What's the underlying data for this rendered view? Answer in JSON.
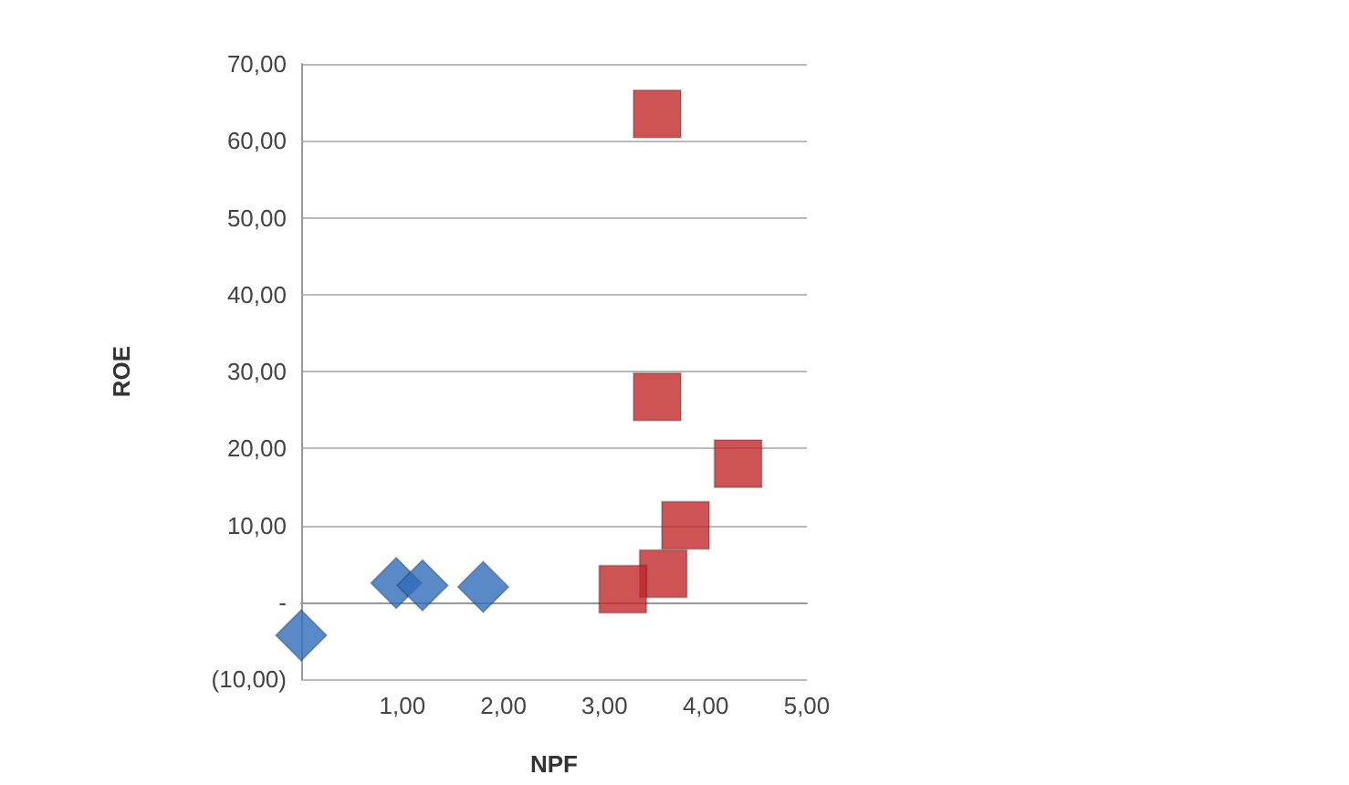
{
  "chart_data": {
    "type": "scatter",
    "xlabel": "NPF",
    "ylabel": "ROE",
    "xlim": [
      0,
      5
    ],
    "xticks": [
      {
        "value": 0,
        "label": null
      },
      {
        "value": 1,
        "label": "1,00"
      },
      {
        "value": 2,
        "label": "2,00"
      },
      {
        "value": 3,
        "label": "3,00"
      },
      {
        "value": 4,
        "label": "4,00"
      },
      {
        "value": 5,
        "label": "5,00"
      }
    ],
    "ylim": [
      -10,
      70
    ],
    "yticks": [
      {
        "value": -10,
        "label": "(10,00)"
      },
      {
        "value": 0,
        "label": "-"
      },
      {
        "value": 10,
        "label": "10,00"
      },
      {
        "value": 20,
        "label": "20,00"
      },
      {
        "value": 30,
        "label": "30,00"
      },
      {
        "value": 40,
        "label": "40,00"
      },
      {
        "value": 50,
        "label": "50,00"
      },
      {
        "value": 60,
        "label": "60,00"
      },
      {
        "value": 70,
        "label": "70,00"
      }
    ],
    "grid": "y",
    "series": [
      {
        "color": "#2f6bb8",
        "marker": "diamond",
        "x": [
          0,
          0.94,
          1.2,
          1.8
        ],
        "values": [
          -4.3,
          2.5,
          2.2,
          2.0
        ]
      },
      {
        "color": "#c0282a",
        "marker": "square",
        "x": [
          3.52,
          3.52,
          4.32,
          3.8,
          3.58,
          3.18
        ],
        "values": [
          63.5,
          26.7,
          18,
          10,
          3.7,
          1.7
        ]
      }
    ]
  }
}
